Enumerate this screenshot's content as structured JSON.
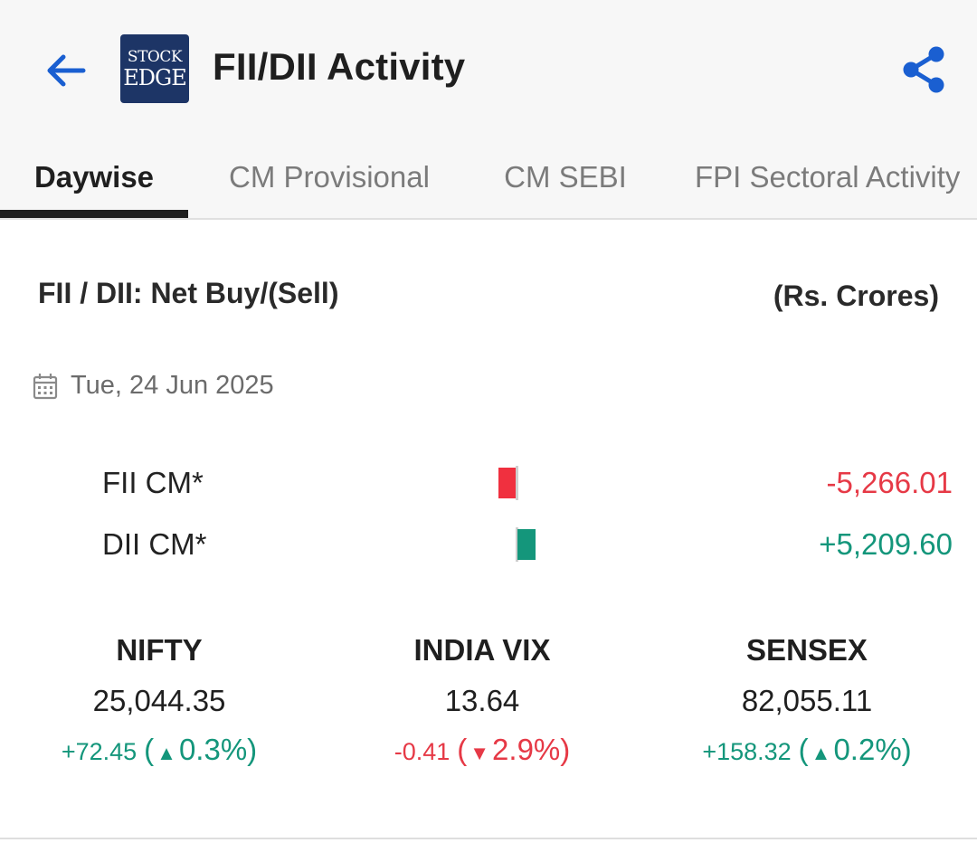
{
  "header": {
    "title": "FII/DII Activity",
    "logo_line1": "STOCK",
    "logo_line2": "EDGE",
    "icons": {
      "back": "back-arrow-icon",
      "share": "share-icon"
    },
    "accent_color": "#1a5fd1"
  },
  "tabs": [
    {
      "label": "Daywise",
      "active": true
    },
    {
      "label": "CM Provisional",
      "active": false
    },
    {
      "label": "CM SEBI",
      "active": false
    },
    {
      "label": "FPI Sectoral Activity",
      "active": false
    }
  ],
  "section": {
    "title": "FII / DII: Net Buy/(Sell)",
    "units": "(Rs. Crores)",
    "date": "Tue, 24 Jun 2025",
    "date_icon": "calendar-icon"
  },
  "activity": [
    {
      "label": "FII CM*",
      "value": "-5,266.01",
      "amount": -5266.01
    },
    {
      "label": "DII CM*",
      "value": "+5,209.60",
      "amount": 5209.6
    }
  ],
  "indices": [
    {
      "name": "NIFTY",
      "value": "25,044.35",
      "change": "+72.45",
      "pct": "0.3%)",
      "direction": "up"
    },
    {
      "name": "INDIA VIX",
      "value": "13.64",
      "change": "-0.41",
      "pct": "2.9%)",
      "direction": "down"
    },
    {
      "name": "SENSEX",
      "value": "82,055.11",
      "change": "+158.32",
      "pct": "0.2%)",
      "direction": "up"
    }
  ],
  "colors": {
    "positive": "#14967b",
    "negative": "#e63946",
    "negative_bar": "#f0303f"
  }
}
